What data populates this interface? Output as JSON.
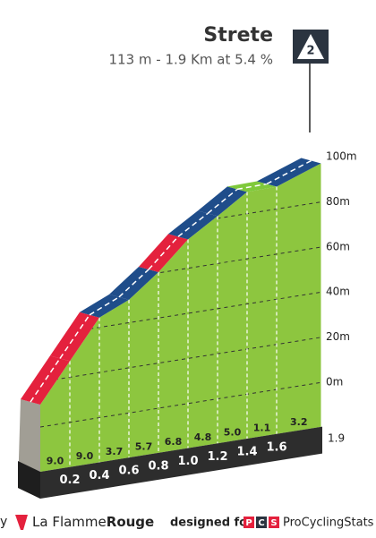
{
  "chart_data": {
    "type": "climb-profile",
    "title": "Strete",
    "subtitle": "113 m - 1.9 Km at 5.4 %",
    "category": "2",
    "xlim": [
      0,
      1.9
    ],
    "xticks": [
      0.2,
      0.4,
      0.6,
      0.8,
      {
        "value": 1,
        "label": "1.0"
      },
      1.2,
      1.4,
      1.6
    ],
    "end_label": 1.9,
    "ylim": [
      0,
      100
    ],
    "yticks": [
      {
        "value": 0,
        "label": "0m"
      },
      {
        "value": 20,
        "label": "20m"
      },
      {
        "value": 40,
        "label": "40m"
      },
      {
        "value": 60,
        "label": "60m"
      },
      {
        "value": 80,
        "label": "80m"
      },
      {
        "value": 100,
        "label": "100m"
      }
    ],
    "series": [
      {
        "values": [
          9,
          9,
          3.7,
          5.7,
          6.8,
          4.8,
          5,
          1.1,
          3.2
        ],
        "value_labels": [
          "9.0",
          "9.0",
          "3.7",
          "5.7",
          "6.8",
          "4.8",
          "5.0",
          "1.1",
          "3.2"
        ],
        "colors": [
          "#e4213d",
          "#e4213d",
          "#1f4d8a",
          "#1f4d8a",
          "#e4213d",
          "#1f4d8a",
          "#1f4d8a",
          "#7fc93b",
          "#1f4d8a"
        ]
      }
    ],
    "area_color": "#8dc63f"
  },
  "footer": {
    "cut": "y",
    "brand_a": "La Flamme",
    "brand_b": "Rouge",
    "designed": "designed for",
    "pcs": [
      "P",
      "C",
      "S"
    ],
    "site": "ProCyclingStats"
  }
}
